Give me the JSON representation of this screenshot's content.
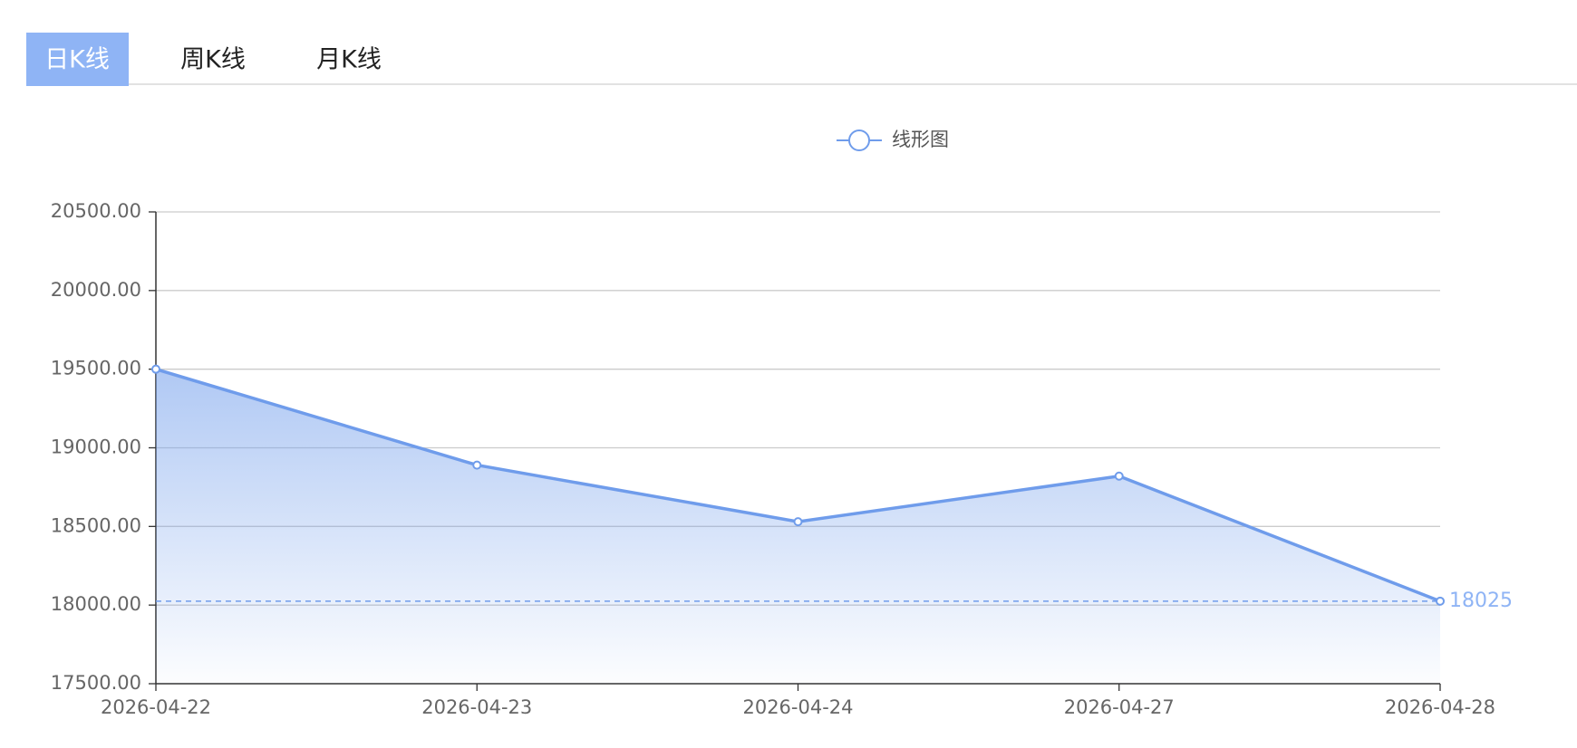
{
  "tabs": [
    "日K线",
    "周K线",
    "月K线"
  ],
  "chart_data": {
    "type": "line",
    "area": true,
    "categories": [
      "2026-04-22",
      "2026-04-23",
      "2026-04-24",
      "2026-04-27",
      "2026-04-28"
    ],
    "series": [
      {
        "name": "线形图",
        "color": "#6f9ceb",
        "values": [
          19500,
          18890,
          18530,
          18820,
          18025
        ]
      }
    ],
    "ylim": [
      17500,
      20500
    ],
    "yticks": [
      {
        "value": 17500,
        "label": "17500.00"
      },
      {
        "value": 18000,
        "label": "18000.00"
      },
      {
        "value": 18500,
        "label": "18500.00"
      },
      {
        "value": 19000,
        "label": "19000.00"
      },
      {
        "value": 19500,
        "label": "19500.00"
      },
      {
        "value": 20000,
        "label": "20000.00"
      },
      {
        "value": 20500,
        "label": "20500.00"
      }
    ],
    "grid": true,
    "mark_line": 18025
  }
}
